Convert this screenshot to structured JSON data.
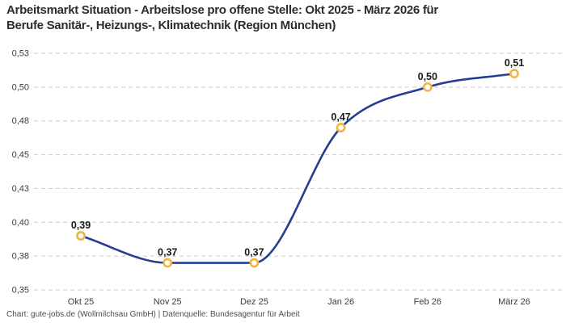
{
  "header": {
    "title_lines": [
      "Arbeitsmarkt Situation - Arbeitslose pro offene Stelle: Okt 2025 - März 2026 für",
      "Berufe Sanitär-, Heizungs-, Klimatechnik (Region München)"
    ]
  },
  "footer": {
    "source": "Chart: gute-jobs.de (Wollmilchsau GmbH) | Datenquelle: Bundesagentur für Arbeit"
  },
  "chart_data": {
    "type": "line",
    "title": "Arbeitsmarkt Situation - Arbeitslose pro offene Stelle: Okt 2025 - März 2026 für Berufe Sanitär-, Heizungs-, Klimatechnik (Region München)",
    "categories": [
      "Okt 25",
      "Nov 25",
      "Dez 25",
      "Jan 26",
      "Feb 26",
      "März 26"
    ],
    "series": [
      {
        "name": "Arbeitslose pro offene Stelle",
        "values": [
          0.39,
          0.37,
          0.37,
          0.47,
          0.5,
          0.51
        ]
      }
    ],
    "value_labels": [
      "0,39",
      "0,37",
      "0,37",
      "0,47",
      "0,50",
      "0,51"
    ],
    "xlabel": "",
    "ylabel": "",
    "y_axis": {
      "min": 0.35,
      "max": 0.525,
      "tick_values": [
        0.35,
        0.375,
        0.4,
        0.425,
        0.45,
        0.475,
        0.5,
        0.525
      ],
      "tick_labels": [
        "0,35",
        "0,38",
        "0,40",
        "0,43",
        "0,45",
        "0,48",
        "0,50",
        "0,53"
      ]
    },
    "grid": "horizontal-dashed",
    "legend_position": "none",
    "curve": "monotone",
    "colors": {
      "line": "#253e93",
      "marker_ring": "#f3b33e",
      "marker_fill": "#ffffff",
      "grid": "#c9c9c9",
      "tick_label": "#3c3c3c",
      "value_label": "#1a1a1a",
      "title": "#2d2d2d",
      "source": "#4d4d4d",
      "background": "#ffffff"
    }
  }
}
